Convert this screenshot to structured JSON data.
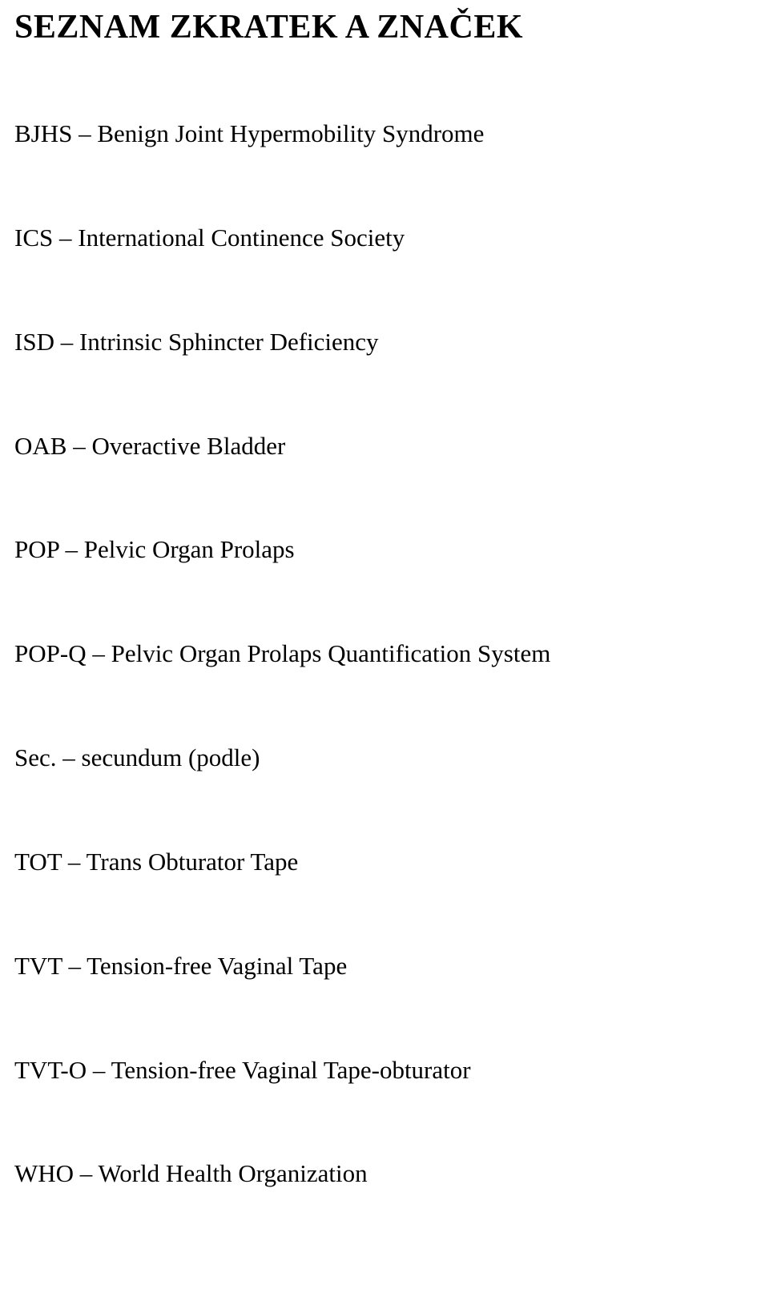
{
  "document": {
    "title": "SEZNAM ZKRATEK A ZNAČEK",
    "entries": [
      "BJHS – Benign Joint Hypermobility Syndrome",
      "ICS – International Continence Society",
      "ISD – Intrinsic Sphincter Deficiency",
      "OAB – Overactive Bladder",
      "POP – Pelvic Organ Prolaps",
      "POP-Q – Pelvic Organ Prolaps Quantification System",
      "Sec. – secundum (podle)",
      "TOT – Trans Obturator Tape",
      "TVT – Tension-free Vaginal Tape",
      "TVT-O – Tension-free Vaginal Tape-obturator",
      "WHO – World Health Organization"
    ],
    "colors": {
      "text": "#000000",
      "background": "#ffffff"
    },
    "typography": {
      "title_fontsize": 42,
      "title_weight": "bold",
      "body_fontsize": 31,
      "font_family": "Times New Roman"
    }
  }
}
